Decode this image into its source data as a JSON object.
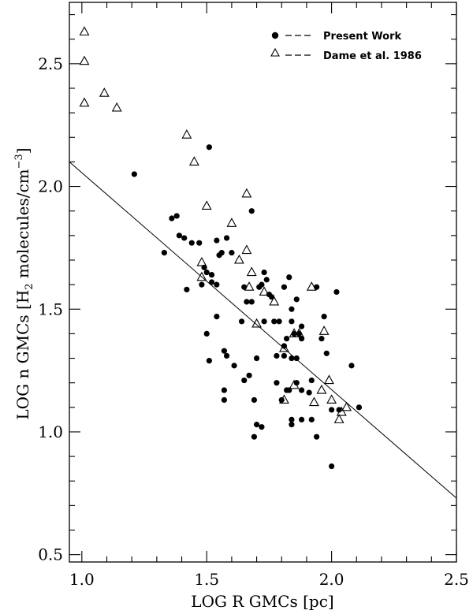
{
  "chart_data": {
    "type": "scatter",
    "title": "",
    "xlabel": "LOG R GMCs [pc]",
    "ylabel": {
      "prefix": "LOG n GMCs [H",
      "subscript": "2",
      "middle": " molecules/cm",
      "superscript": "−3",
      "suffix": "]"
    },
    "xlim": [
      0.95,
      2.5
    ],
    "ylim": [
      0.47,
      2.75
    ],
    "xticks": [
      "1.0",
      "1.5",
      "2.0",
      "2.5"
    ],
    "yticks": [
      "0.5",
      "1.0",
      "1.5",
      "2.0",
      "2.5"
    ],
    "grid": false,
    "legend_position": "top-right",
    "series": [
      {
        "name": "Present Work",
        "marker": "filled-circle",
        "points": [
          [
            1.21,
            2.05
          ],
          [
            1.51,
            2.16
          ],
          [
            1.33,
            1.73
          ],
          [
            1.36,
            1.87
          ],
          [
            1.38,
            1.88
          ],
          [
            1.39,
            1.8
          ],
          [
            1.41,
            1.79
          ],
          [
            1.44,
            1.77
          ],
          [
            1.47,
            1.77
          ],
          [
            1.42,
            1.58
          ],
          [
            1.48,
            1.6
          ],
          [
            1.49,
            1.67
          ],
          [
            1.5,
            1.65
          ],
          [
            1.52,
            1.64
          ],
          [
            1.52,
            1.61
          ],
          [
            1.54,
            1.6
          ],
          [
            1.54,
            1.78
          ],
          [
            1.56,
            1.73
          ],
          [
            1.55,
            1.72
          ],
          [
            1.58,
            1.79
          ],
          [
            1.6,
            1.73
          ],
          [
            1.54,
            1.47
          ],
          [
            1.57,
            1.33
          ],
          [
            1.58,
            1.31
          ],
          [
            1.5,
            1.4
          ],
          [
            1.51,
            1.29
          ],
          [
            1.57,
            1.17
          ],
          [
            1.57,
            1.13
          ],
          [
            1.61,
            1.27
          ],
          [
            1.64,
            1.45
          ],
          [
            1.65,
            1.59
          ],
          [
            1.66,
            1.53
          ],
          [
            1.68,
            1.53
          ],
          [
            1.65,
            1.21
          ],
          [
            1.67,
            1.23
          ],
          [
            1.69,
            1.13
          ],
          [
            1.68,
            1.9
          ],
          [
            1.71,
            1.59
          ],
          [
            1.7,
            1.3
          ],
          [
            1.72,
            1.6
          ],
          [
            1.73,
            1.65
          ],
          [
            1.74,
            1.62
          ],
          [
            1.75,
            1.56
          ],
          [
            1.76,
            1.55
          ],
          [
            1.77,
            1.45
          ],
          [
            1.73,
            1.45
          ],
          [
            1.79,
            1.45
          ],
          [
            1.81,
            1.59
          ],
          [
            1.83,
            1.63
          ],
          [
            1.84,
            1.5
          ],
          [
            1.86,
            1.54
          ],
          [
            1.84,
            1.45
          ],
          [
            1.87,
            1.4
          ],
          [
            1.85,
            1.4
          ],
          [
            1.88,
            1.43
          ],
          [
            1.88,
            1.38
          ],
          [
            1.82,
            1.38
          ],
          [
            1.81,
            1.35
          ],
          [
            1.78,
            1.31
          ],
          [
            1.81,
            1.31
          ],
          [
            1.84,
            1.3
          ],
          [
            1.86,
            1.3
          ],
          [
            1.78,
            1.2
          ],
          [
            1.82,
            1.17
          ],
          [
            1.83,
            1.17
          ],
          [
            1.86,
            1.2
          ],
          [
            1.88,
            1.17
          ],
          [
            1.91,
            1.16
          ],
          [
            1.92,
            1.21
          ],
          [
            1.94,
            1.59
          ],
          [
            1.96,
            1.38
          ],
          [
            1.97,
            1.47
          ],
          [
            1.98,
            1.32
          ],
          [
            1.8,
            1.13
          ],
          [
            1.84,
            1.05
          ],
          [
            1.84,
            1.03
          ],
          [
            1.88,
            1.05
          ],
          [
            1.92,
            1.05
          ],
          [
            1.94,
            0.98
          ],
          [
            1.7,
            1.03
          ],
          [
            1.72,
            1.02
          ],
          [
            1.69,
            0.98
          ],
          [
            2.0,
            1.09
          ],
          [
            2.02,
            1.57
          ],
          [
            2.03,
            1.09
          ],
          [
            2.08,
            1.27
          ],
          [
            2.11,
            1.1
          ],
          [
            2.0,
            0.86
          ]
        ]
      },
      {
        "name": "Dame et al. 1986",
        "marker": "open-triangle",
        "points": [
          [
            1.01,
            2.63
          ],
          [
            1.01,
            2.51
          ],
          [
            1.01,
            2.34
          ],
          [
            1.09,
            2.38
          ],
          [
            1.14,
            2.32
          ],
          [
            1.42,
            2.21
          ],
          [
            1.45,
            2.1
          ],
          [
            1.5,
            1.92
          ],
          [
            1.6,
            1.85
          ],
          [
            1.66,
            1.97
          ],
          [
            1.63,
            1.7
          ],
          [
            1.66,
            1.74
          ],
          [
            1.48,
            1.69
          ],
          [
            1.48,
            1.63
          ],
          [
            1.68,
            1.65
          ],
          [
            1.67,
            1.59
          ],
          [
            1.73,
            1.57
          ],
          [
            1.77,
            1.53
          ],
          [
            1.7,
            1.44
          ],
          [
            1.85,
            1.4
          ],
          [
            1.87,
            1.4
          ],
          [
            1.81,
            1.34
          ],
          [
            1.85,
            1.19
          ],
          [
            1.81,
            1.13
          ],
          [
            1.92,
            1.59
          ],
          [
            1.97,
            1.41
          ],
          [
            1.96,
            1.17
          ],
          [
            1.99,
            1.21
          ],
          [
            1.93,
            1.12
          ],
          [
            2.0,
            1.13
          ],
          [
            2.04,
            1.08
          ],
          [
            2.03,
            1.05
          ],
          [
            2.06,
            1.1
          ]
        ]
      }
    ],
    "fit_line": {
      "x": [
        0.95,
        2.5
      ],
      "y": [
        2.1,
        0.73
      ]
    }
  }
}
